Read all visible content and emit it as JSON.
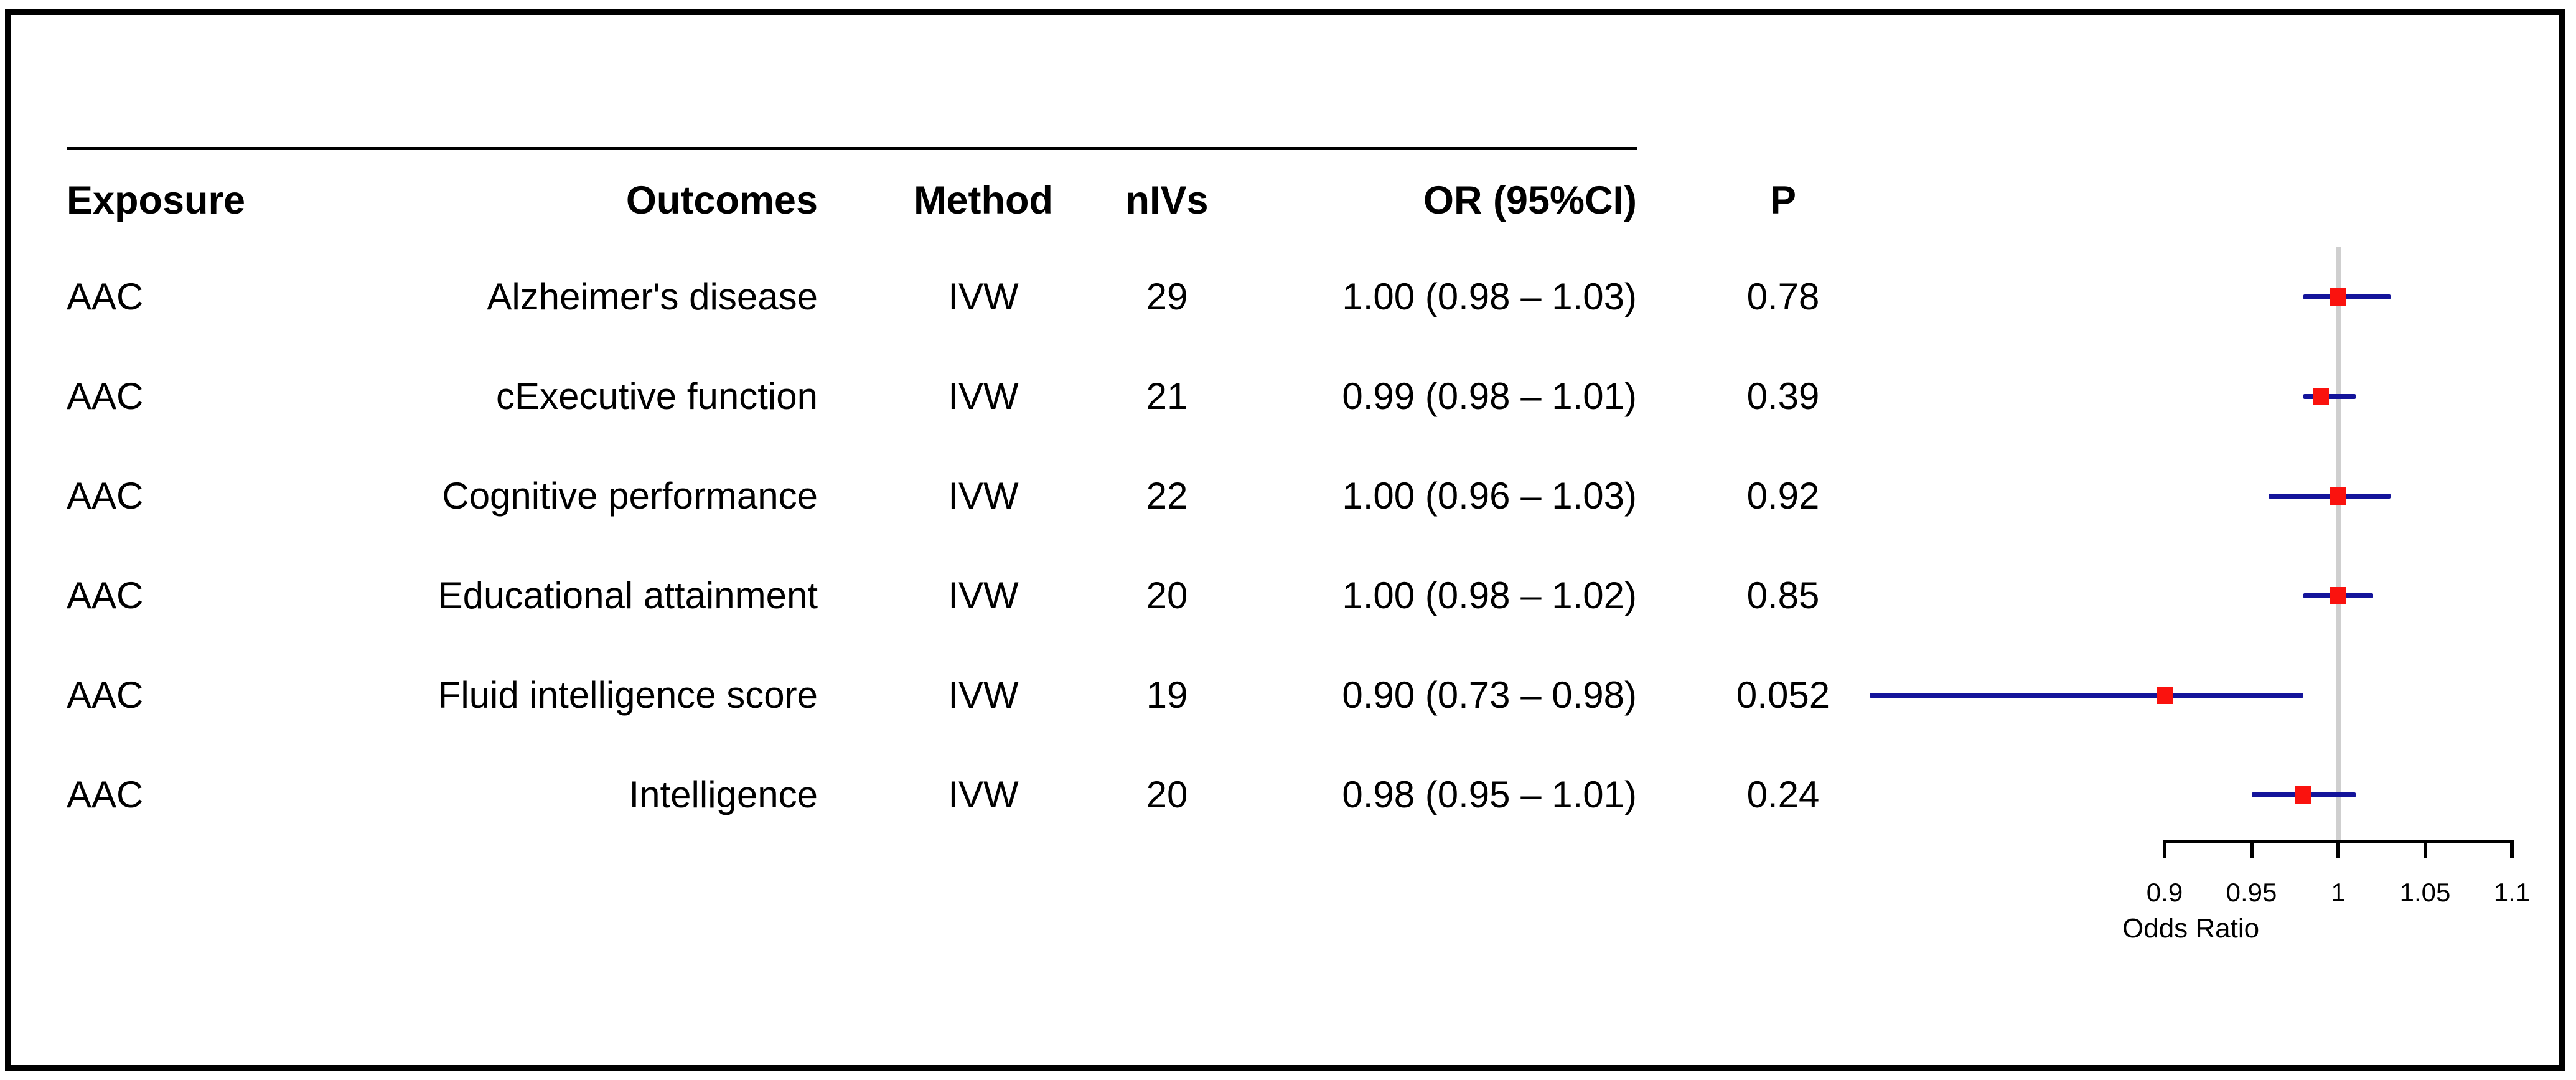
{
  "figure": {
    "header": {
      "exposure": "Exposure",
      "outcomes": "Outcomes",
      "method": "Method",
      "nivs": "nIVs",
      "or_ci": "OR (95%CI)",
      "p": "P"
    },
    "rows": [
      {
        "exposure": "AAC",
        "outcome": "Alzheimer's disease",
        "method": "IVW",
        "nivs": "29",
        "or_ci": "1.00 (0.98 – 1.03)",
        "p": "0.78"
      },
      {
        "exposure": "AAC",
        "outcome": "cExecutive function",
        "method": "IVW",
        "nivs": "21",
        "or_ci": "0.99 (0.98 – 1.01)",
        "p": "0.39"
      },
      {
        "exposure": "AAC",
        "outcome": "Cognitive performance",
        "method": "IVW",
        "nivs": "22",
        "or_ci": "1.00 (0.96 – 1.03)",
        "p": "0.92"
      },
      {
        "exposure": "AAC",
        "outcome": "Educational attainment",
        "method": "IVW",
        "nivs": "20",
        "or_ci": "1.00 (0.98 – 1.02)",
        "p": "0.85"
      },
      {
        "exposure": "AAC",
        "outcome": "Fluid intelligence score",
        "method": "IVW",
        "nivs": "19",
        "or_ci": "0.90 (0.73 – 0.98)",
        "p": "0.052"
      },
      {
        "exposure": "AAC",
        "outcome": "Intelligence",
        "method": "IVW",
        "nivs": "20",
        "or_ci": "0.98 (0.95 – 1.01)",
        "p": "0.24"
      }
    ]
  },
  "chart_data": {
    "type": "scatter",
    "subtype": "forest-plot",
    "xlabel": "Odds Ratio",
    "x_tick_labels": [
      "0.9",
      "0.95",
      "1",
      "1.05",
      "1.1"
    ],
    "x_tick_values": [
      0.9,
      0.95,
      1,
      1.05,
      1.1
    ],
    "xlim": [
      0.9,
      1.1
    ],
    "reference_line_x": 1,
    "grid": false,
    "series": [
      {
        "name": "Alzheimer's disease",
        "or": 1.0,
        "ci_low": 0.98,
        "ci_high": 1.03
      },
      {
        "name": "cExecutive function",
        "or": 0.99,
        "ci_low": 0.98,
        "ci_high": 1.01
      },
      {
        "name": "Cognitive performance",
        "or": 1.0,
        "ci_low": 0.96,
        "ci_high": 1.03
      },
      {
        "name": "Educational attainment",
        "or": 1.0,
        "ci_low": 0.98,
        "ci_high": 1.02
      },
      {
        "name": "Fluid intelligence score",
        "or": 0.9,
        "ci_low": 0.73,
        "ci_high": 0.98
      },
      {
        "name": "Intelligence",
        "or": 0.98,
        "ci_low": 0.95,
        "ci_high": 1.01
      }
    ],
    "colors": {
      "marker": "#fa120e",
      "ci_line": "#14149b",
      "reference_line": "#cfcfcf",
      "axis": "#000000",
      "text": "#000000"
    }
  }
}
